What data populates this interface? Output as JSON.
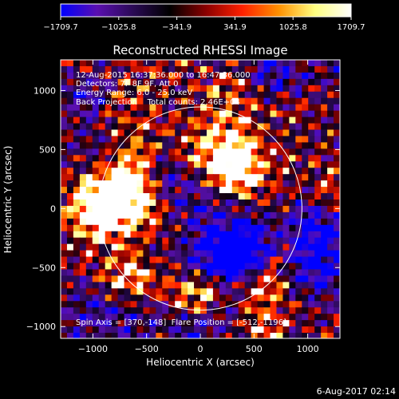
{
  "chart_data": {
    "type": "heatmap",
    "title": "Reconstructed RHESSI Image",
    "xlabel": "Heliocentric X (arcsec)",
    "ylabel": "Heliocentric Y (arcsec)",
    "xlim": [
      -1300,
      1300
    ],
    "ylim": [
      -1100,
      1260
    ],
    "x_ticks": [
      -1000,
      -500,
      0,
      500,
      1000
    ],
    "x_tick_labels": [
      "−1000",
      "−500",
      "0",
      "500",
      "1000"
    ],
    "y_ticks": [
      -1000,
      -500,
      0,
      500,
      1000
    ],
    "y_tick_labels": [
      "−1000",
      "−500",
      "0",
      "500",
      "1000"
    ],
    "colorbar": {
      "min": -1709.7,
      "max": 1709.7,
      "tick_values": [
        -1709.7,
        -1025.8,
        -341.9,
        341.9,
        1025.8,
        1709.7
      ],
      "tick_labels": [
        "−1709.7",
        "−1025.8",
        "−341.9",
        "341.9",
        "1025.8",
        "1709.7"
      ],
      "colors": [
        "#0000ff",
        "#5a0fb0",
        "#2a0a55",
        "#000000",
        "#8a0000",
        "#ff2000",
        "#ff9000",
        "#ffff80",
        "#ffffff"
      ]
    },
    "solar_limb_radius_arcsec": 946,
    "annotations": {
      "time_range": "12-Aug-2015 16:37:36.000 to 16:47:36.000",
      "detectors": "Detectors: 7F 8F 9F, Att 0",
      "energy_range": "Energy Range: 6.0 - 25.0 keV",
      "method_and_counts": "Back Projection    Total counts: 2.46E+04",
      "spin_axis_and_flare_position": "Spin Axis = [370,-148]  Flare Position = [-512,-1196]"
    }
  },
  "footer_timestamp": "6-Aug-2017 02:14"
}
